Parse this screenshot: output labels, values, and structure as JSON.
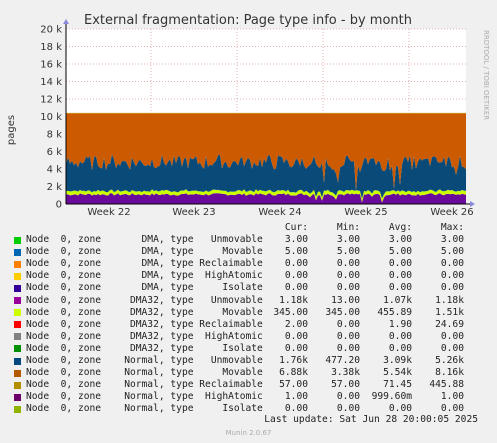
{
  "chart_data": {
    "type": "area",
    "title": "External fragmentation: Page type info - by month",
    "ylabel": "pages",
    "ylim": [
      0,
      20000
    ],
    "yticks": [
      {
        "v": 0,
        "t": "0"
      },
      {
        "v": 2000,
        "t": "2 k"
      },
      {
        "v": 4000,
        "t": "4 k"
      },
      {
        "v": 6000,
        "t": "6 k"
      },
      {
        "v": 8000,
        "t": "8 k"
      },
      {
        "v": 10000,
        "t": "10 k"
      },
      {
        "v": 12000,
        "t": "12 k"
      },
      {
        "v": 14000,
        "t": "14 k"
      },
      {
        "v": 16000,
        "t": "16 k"
      },
      {
        "v": 18000,
        "t": "18 k"
      },
      {
        "v": 20000,
        "t": "20 k"
      }
    ],
    "xticks": [
      "Week 22",
      "Week 23",
      "Week 24",
      "Week 25",
      "Week 26"
    ],
    "grid": true,
    "stack_layers": [
      {
        "color": "#6a0a9c",
        "base": 1100,
        "amp": 150,
        "dips": 900
      },
      {
        "color": "#ccff00",
        "base": 400,
        "amp": 60
      },
      {
        "color": "#1ea4e0",
        "base": 10,
        "amp": 0
      },
      {
        "color": "#0a4a78",
        "base": 3300,
        "amp": 800,
        "dips": 3000
      },
      {
        "color": "#cc5a00",
        "top": 10350
      },
      {
        "color": "#c8a000",
        "base": 57,
        "amp": 0
      }
    ]
  },
  "side_text": "RRDTOOL / TOBI OETIKER",
  "legend": {
    "headers": {
      "cur": "Cur:",
      "min": "Min:",
      "avg": "Avg:",
      "max": "Max:"
    },
    "rows": [
      {
        "label": "Node  0, zone       DMA, type   Unmovable",
        "color": "#00cc00",
        "cur": "3.00",
        "min": "3.00",
        "avg": "3.00",
        "max": "3.00"
      },
      {
        "label": "Node  0, zone       DMA, type     Movable",
        "color": "#0066b3",
        "cur": "5.00",
        "min": "5.00",
        "avg": "5.00",
        "max": "5.00"
      },
      {
        "label": "Node  0, zone       DMA, type Reclaimable",
        "color": "#ff8000",
        "cur": "0.00",
        "min": "0.00",
        "avg": "0.00",
        "max": "0.00"
      },
      {
        "label": "Node  0, zone       DMA, type  HighAtomic",
        "color": "#ffcc00",
        "cur": "0.00",
        "min": "0.00",
        "avg": "0.00",
        "max": "0.00"
      },
      {
        "label": "Node  0, zone       DMA, type     Isolate",
        "color": "#330099",
        "cur": "0.00",
        "min": "0.00",
        "avg": "0.00",
        "max": "0.00"
      },
      {
        "label": "Node  0, zone     DMA32, type   Unmovable",
        "color": "#990099",
        "cur": "1.18k",
        "min": "13.00",
        "avg": "1.07k",
        "max": "1.18k"
      },
      {
        "label": "Node  0, zone     DMA32, type     Movable",
        "color": "#ccff00",
        "cur": "345.00",
        "min": "345.00",
        "avg": "455.89",
        "max": "1.51k"
      },
      {
        "label": "Node  0, zone     DMA32, type Reclaimable",
        "color": "#ff0000",
        "cur": "2.00",
        "min": "0.00",
        "avg": "1.90",
        "max": "24.69"
      },
      {
        "label": "Node  0, zone     DMA32, type  HighAtomic",
        "color": "#808080",
        "cur": "0.00",
        "min": "0.00",
        "avg": "0.00",
        "max": "0.00"
      },
      {
        "label": "Node  0, zone     DMA32, type     Isolate",
        "color": "#008f00",
        "cur": "0.00",
        "min": "0.00",
        "avg": "0.00",
        "max": "0.00"
      },
      {
        "label": "Node  0, zone    Normal, type   Unmovable",
        "color": "#00487d",
        "cur": "1.76k",
        "min": "477.20",
        "avg": "3.09k",
        "max": "5.26k"
      },
      {
        "label": "Node  0, zone    Normal, type     Movable",
        "color": "#b35a00",
        "cur": "6.88k",
        "min": "3.38k",
        "avg": "5.54k",
        "max": "8.16k"
      },
      {
        "label": "Node  0, zone    Normal, type Reclaimable",
        "color": "#b38f00",
        "cur": "57.00",
        "min": "57.00",
        "avg": "71.45",
        "max": "445.88"
      },
      {
        "label": "Node  0, zone    Normal, type  HighAtomic",
        "color": "#6b006b",
        "cur": "1.00",
        "min": "0.00",
        "avg": "999.60m",
        "max": "1.00"
      },
      {
        "label": "Node  0, zone    Normal, type     Isolate",
        "color": "#8fb300",
        "cur": "0.00",
        "min": "0.00",
        "avg": "0.00",
        "max": "0.00"
      }
    ]
  },
  "last_update": "Last update: Sat Jun 28 20:00:05 2025",
  "munin_version": "Munin 2.0.67"
}
